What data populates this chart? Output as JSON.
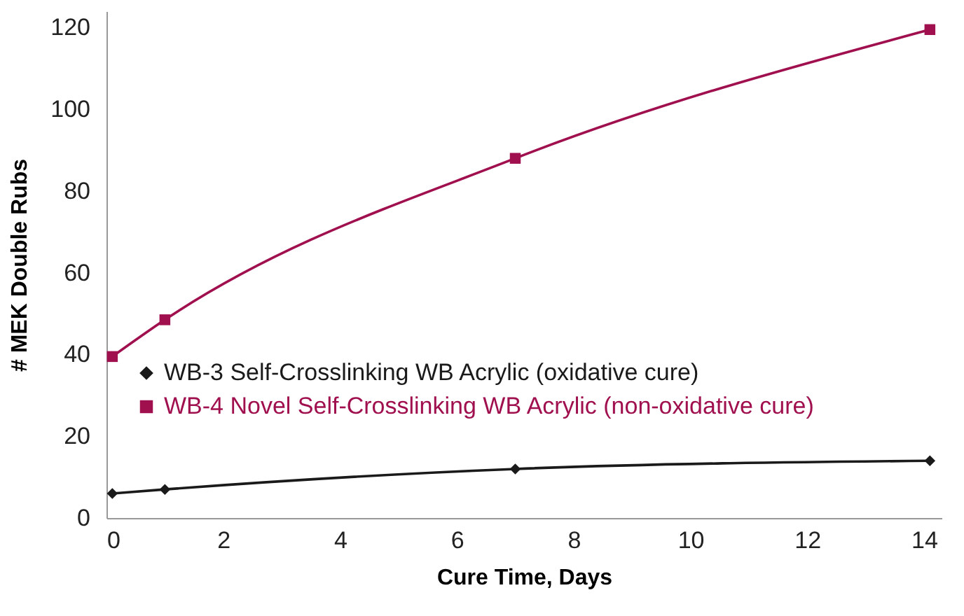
{
  "chart_data": {
    "type": "line",
    "xlabel": "Cure Time, Days",
    "ylabel": "# MEK Double Rubs",
    "x": [
      0.1,
      1,
      7,
      14.1
    ],
    "series": [
      {
        "name": "WB-3  Self-Crosslinking WB Acrylic (oxidative cure)",
        "color": "#1a1a1a",
        "marker": "diamond",
        "values": [
          6,
          7,
          12,
          14
        ]
      },
      {
        "name": "WB-4  Novel Self-Crosslinking WB Acrylic (non-oxidative cure)",
        "color": "#a0104f",
        "marker": "square",
        "values": [
          39.5,
          48.5,
          88,
          119.5
        ]
      }
    ],
    "xlim": [
      0,
      14.3
    ],
    "xticks": [
      0,
      2,
      4,
      6,
      8,
      10,
      12,
      14
    ],
    "ylim": [
      0,
      124
    ],
    "yticks": [
      0,
      20,
      40,
      60,
      80,
      100,
      120
    ],
    "grid": false,
    "legend": "left"
  }
}
